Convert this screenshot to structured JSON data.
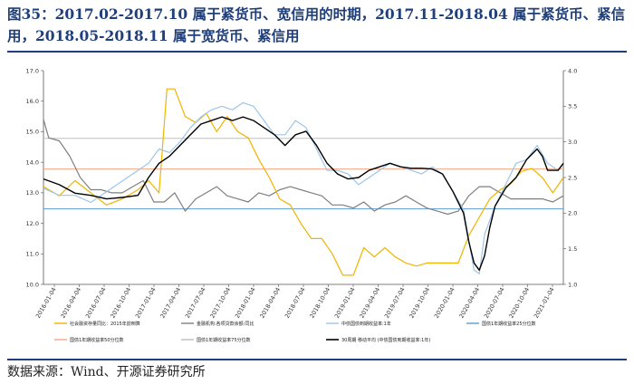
{
  "header": {
    "title": "图35：2017.02-2017.10 属于紧货币、宽信用的时期，2017.11-2018.04 属于紧货币、紧信用，2018.05-2018.11 属于宽货币、紧信用"
  },
  "footer": {
    "source": "数据来源：Wind、开源证券研究所"
  },
  "chart_data": {
    "type": "line",
    "x_labels": [
      "2016-01-04",
      "2016-04-04",
      "2016-07-04",
      "2016-10-04",
      "2017-01-04",
      "2017-04-04",
      "2017-07-04",
      "2017-10-04",
      "2018-01-04",
      "2018-04-04",
      "2018-07-04",
      "2018-10-04",
      "2019-01-04",
      "2019-04-04",
      "2019-07-04",
      "2019-10-04",
      "2020-01-04",
      "2020-04-04",
      "2020-07-04",
      "2020-10-04",
      "2021-01-04"
    ],
    "ylim_left": [
      10.0,
      17.0
    ],
    "yticks_left": [
      "10.0",
      "11.0",
      "12.0",
      "13.0",
      "14.0",
      "15.0",
      "16.0",
      "17.0"
    ],
    "ylim_right": [
      1.0,
      4.0
    ],
    "yticks_right": [
      "1.0",
      "1.5",
      "2.0",
      "2.5",
      "3.0",
      "3.5",
      "4.0"
    ],
    "grid": false,
    "legend_position": "bottom",
    "series": [
      {
        "name": "社会融资存量同比：2015年前倒算",
        "color": "#f0b400",
        "axis": "left",
        "values": [
          [
            0,
            13.2
          ],
          [
            3,
            12.9
          ],
          [
            6,
            13.4
          ],
          [
            9,
            13.0
          ],
          [
            12,
            12.6
          ],
          [
            15,
            12.8
          ],
          [
            18,
            13.1
          ],
          [
            20,
            13.4
          ],
          [
            22,
            13.0
          ],
          [
            23.5,
            16.4
          ],
          [
            25,
            16.4
          ],
          [
            27,
            15.5
          ],
          [
            29,
            15.3
          ],
          [
            31,
            15.6
          ],
          [
            33,
            15.0
          ],
          [
            35,
            15.5
          ],
          [
            37,
            15.0
          ],
          [
            39,
            14.8
          ],
          [
            41,
            14.1
          ],
          [
            43,
            13.5
          ],
          [
            45,
            12.8
          ],
          [
            47,
            12.6
          ],
          [
            49,
            12.0
          ],
          [
            51,
            11.5
          ],
          [
            53,
            11.5
          ],
          [
            55,
            11.0
          ],
          [
            57,
            10.3
          ],
          [
            59,
            10.3
          ],
          [
            61,
            11.2
          ],
          [
            63,
            10.9
          ],
          [
            65,
            11.2
          ],
          [
            67,
            10.9
          ],
          [
            69,
            10.7
          ],
          [
            71,
            10.6
          ],
          [
            73,
            10.7
          ],
          [
            75,
            10.7
          ],
          [
            77,
            10.7
          ],
          [
            79,
            10.7
          ],
          [
            81,
            11.6
          ],
          [
            83,
            12.2
          ],
          [
            85,
            12.8
          ],
          [
            87,
            13.1
          ],
          [
            89,
            13.3
          ],
          [
            91,
            13.7
          ],
          [
            93,
            13.8
          ],
          [
            95,
            13.5
          ],
          [
            97,
            13.0
          ],
          [
            99,
            13.5
          ]
        ]
      },
      {
        "name": "金融机构:各项贷款余额:同比",
        "color": "#7f7f7f",
        "axis": "left",
        "values": [
          [
            0,
            15.4
          ],
          [
            1,
            14.8
          ],
          [
            3,
            14.7
          ],
          [
            5,
            14.2
          ],
          [
            7,
            13.5
          ],
          [
            9,
            13.1
          ],
          [
            11,
            13.1
          ],
          [
            13,
            13.0
          ],
          [
            15,
            13.0
          ],
          [
            17,
            13.2
          ],
          [
            19,
            13.4
          ],
          [
            21,
            12.7
          ],
          [
            23,
            12.7
          ],
          [
            25,
            13.0
          ],
          [
            27,
            12.4
          ],
          [
            29,
            12.8
          ],
          [
            31,
            13.0
          ],
          [
            33,
            13.2
          ],
          [
            35,
            12.9
          ],
          [
            37,
            12.8
          ],
          [
            39,
            12.7
          ],
          [
            41,
            13.0
          ],
          [
            43,
            12.9
          ],
          [
            45,
            13.1
          ],
          [
            47,
            13.2
          ],
          [
            49,
            13.1
          ],
          [
            51,
            13.0
          ],
          [
            53,
            12.9
          ],
          [
            55,
            12.6
          ],
          [
            57,
            12.6
          ],
          [
            59,
            12.5
          ],
          [
            61,
            12.7
          ],
          [
            63,
            12.4
          ],
          [
            65,
            12.6
          ],
          [
            67,
            12.7
          ],
          [
            69,
            12.9
          ],
          [
            71,
            12.7
          ],
          [
            73,
            12.5
          ],
          [
            75,
            12.4
          ],
          [
            77,
            12.3
          ],
          [
            79,
            12.4
          ],
          [
            81,
            12.9
          ],
          [
            83,
            13.2
          ],
          [
            85,
            13.2
          ],
          [
            87,
            13.0
          ],
          [
            89,
            12.8
          ],
          [
            91,
            12.8
          ],
          [
            93,
            12.8
          ],
          [
            95,
            12.8
          ],
          [
            97,
            12.7
          ],
          [
            99,
            12.9
          ]
        ]
      },
      {
        "name": "中债国债到期收益率:1年",
        "color": "#9ec5e8",
        "axis": "right",
        "values": [
          [
            0,
            2.35
          ],
          [
            3,
            2.25
          ],
          [
            6,
            2.25
          ],
          [
            9,
            2.15
          ],
          [
            12,
            2.3
          ],
          [
            15,
            2.45
          ],
          [
            18,
            2.6
          ],
          [
            20,
            2.7
          ],
          [
            22,
            2.9
          ],
          [
            24,
            2.85
          ],
          [
            26,
            3.0
          ],
          [
            28,
            3.2
          ],
          [
            30,
            3.35
          ],
          [
            32,
            3.45
          ],
          [
            34,
            3.5
          ],
          [
            36,
            3.45
          ],
          [
            38,
            3.55
          ],
          [
            40,
            3.5
          ],
          [
            42,
            3.3
          ],
          [
            44,
            3.1
          ],
          [
            46,
            3.1
          ],
          [
            48,
            3.3
          ],
          [
            50,
            3.2
          ],
          [
            52,
            2.9
          ],
          [
            54,
            2.6
          ],
          [
            56,
            2.6
          ],
          [
            58,
            2.55
          ],
          [
            60,
            2.4
          ],
          [
            62,
            2.5
          ],
          [
            64,
            2.6
          ],
          [
            66,
            2.7
          ],
          [
            68,
            2.65
          ],
          [
            70,
            2.6
          ],
          [
            72,
            2.55
          ],
          [
            74,
            2.65
          ],
          [
            76,
            2.55
          ],
          [
            78,
            2.3
          ],
          [
            80,
            2.05
          ],
          [
            82,
            1.2
          ],
          [
            83,
            1.15
          ],
          [
            84,
            1.7
          ],
          [
            86,
            2.1
          ],
          [
            88,
            2.4
          ],
          [
            90,
            2.7
          ],
          [
            92,
            2.75
          ],
          [
            94,
            2.95
          ],
          [
            96,
            2.7
          ],
          [
            98,
            2.6
          ],
          [
            99,
            2.7
          ]
        ]
      },
      {
        "name": "国债1年期收益率25分位数",
        "color": "#5b9bd5",
        "axis": "right",
        "values": [
          [
            0,
            2.06
          ],
          [
            99,
            2.06
          ]
        ]
      },
      {
        "name": "国债1年期收益率50分位数",
        "color": "#f4a582",
        "axis": "right",
        "values": [
          [
            0,
            2.62
          ],
          [
            99,
            2.62
          ]
        ]
      },
      {
        "name": "国债1年期收益率75分位数",
        "color": "#bfbfbf",
        "axis": "right",
        "values": [
          [
            0,
            3.05
          ],
          [
            99,
            3.05
          ]
        ]
      },
      {
        "name": "30周期 移动平均 (中债国债到期收益率:1年)",
        "color": "#000000",
        "axis": "right",
        "values": [
          [
            0,
            2.48
          ],
          [
            3,
            2.4
          ],
          [
            6,
            2.28
          ],
          [
            9,
            2.25
          ],
          [
            12,
            2.2
          ],
          [
            15,
            2.22
          ],
          [
            18,
            2.25
          ],
          [
            20,
            2.5
          ],
          [
            22,
            2.7
          ],
          [
            24,
            2.8
          ],
          [
            26,
            2.95
          ],
          [
            28,
            3.1
          ],
          [
            30,
            3.25
          ],
          [
            32,
            3.3
          ],
          [
            34,
            3.35
          ],
          [
            36,
            3.3
          ],
          [
            38,
            3.35
          ],
          [
            40,
            3.3
          ],
          [
            42,
            3.2
          ],
          [
            44,
            3.1
          ],
          [
            46,
            2.95
          ],
          [
            48,
            3.1
          ],
          [
            50,
            3.15
          ],
          [
            52,
            2.95
          ],
          [
            54,
            2.7
          ],
          [
            56,
            2.55
          ],
          [
            58,
            2.48
          ],
          [
            60,
            2.5
          ],
          [
            62,
            2.6
          ],
          [
            64,
            2.65
          ],
          [
            66,
            2.7
          ],
          [
            68,
            2.65
          ],
          [
            70,
            2.63
          ],
          [
            72,
            2.63
          ],
          [
            74,
            2.62
          ],
          [
            76,
            2.55
          ],
          [
            78,
            2.3
          ],
          [
            80,
            2.0
          ],
          [
            81,
            1.6
          ],
          [
            82,
            1.3
          ],
          [
            83,
            1.2
          ],
          [
            84,
            1.4
          ],
          [
            85,
            1.8
          ],
          [
            86,
            2.1
          ],
          [
            88,
            2.35
          ],
          [
            90,
            2.5
          ],
          [
            92,
            2.75
          ],
          [
            94,
            2.9
          ],
          [
            95,
            2.8
          ],
          [
            96,
            2.6
          ],
          [
            98,
            2.6
          ],
          [
            99,
            2.7
          ]
        ]
      }
    ]
  }
}
